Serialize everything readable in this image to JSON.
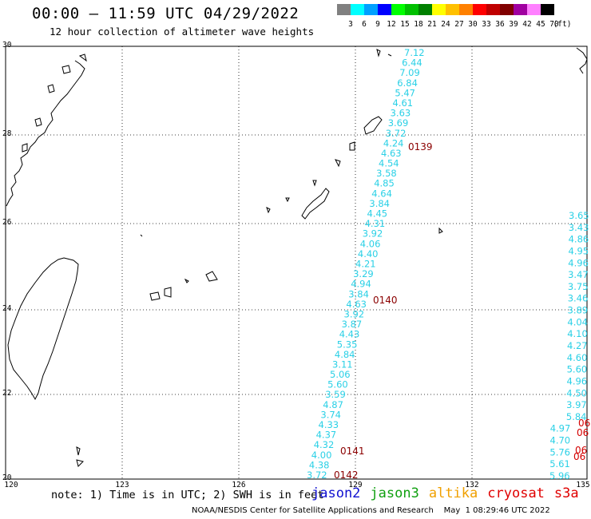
{
  "header": {
    "title": "00:00 – 11:59 UTC 04/29/2022",
    "subtitle": "12 hour collection of altimeter wave heights"
  },
  "legend": {
    "unit": "(ft)",
    "bins": [
      {
        "label": "3",
        "color": "#808080"
      },
      {
        "label": "6",
        "color": "#00ffff"
      },
      {
        "label": "9",
        "color": "#00a0ff"
      },
      {
        "label": "12",
        "color": "#0000ff"
      },
      {
        "label": "15",
        "color": "#00ff00"
      },
      {
        "label": "18",
        "color": "#00c000"
      },
      {
        "label": "21",
        "color": "#008000"
      },
      {
        "label": "24",
        "color": "#ffff00"
      },
      {
        "label": "27",
        "color": "#ffc000"
      },
      {
        "label": "30",
        "color": "#ff8000"
      },
      {
        "label": "33",
        "color": "#ff0000"
      },
      {
        "label": "36",
        "color": "#c00000"
      },
      {
        "label": "39",
        "color": "#800000"
      },
      {
        "label": "42",
        "color": "#a000a0"
      },
      {
        "label": "45",
        "color": "#ff80ff"
      },
      {
        "label": "70",
        "color": "#000000"
      }
    ]
  },
  "axes": {
    "lat_labels": [
      "30",
      "28",
      "26",
      "24",
      "22",
      "20"
    ],
    "lon_labels": [
      "120",
      "123",
      "126",
      "129",
      "132",
      "135"
    ]
  },
  "map_data": {
    "track_main": [
      "7.12",
      "6.44",
      "7.09",
      "6.84",
      "5.47",
      "4.61",
      "3.63",
      "3.69",
      "3.72",
      "4.24",
      "4.63",
      "4.54",
      "3.58",
      "4.85",
      "4.64",
      "3.84",
      "4.45",
      "4.31",
      "3.92",
      "4.06",
      "4.40",
      "4.21",
      "3.29",
      "4.94",
      "3.84",
      "4.63",
      "3.92",
      "3.87",
      "4.43",
      "5.35",
      "4.84",
      "3.11",
      "5.06",
      "5.60",
      "3.59",
      "4.87",
      "3.74",
      "4.33",
      "4.37",
      "4.32",
      "4.00",
      "4.38",
      "3.72"
    ],
    "pass_labels": [
      "0139",
      "0140",
      "0141",
      "0142"
    ],
    "track_east": [
      "3.65",
      "3.43",
      "4.86",
      "4.95",
      "4.96",
      "3.47",
      "3.75",
      "3.46",
      "3.89",
      "4.04",
      "4.10",
      "4.27",
      "4.60",
      "5.60",
      "4.96",
      "4.50",
      "3.97",
      "5.84",
      "4.97",
      "4.70",
      "5.76",
      "5.61",
      "5.96"
    ],
    "cryosat_labels": [
      "06",
      "06",
      "06",
      "06"
    ]
  },
  "footer": {
    "note": "note: 1) Time is in UTC; 2) SWH is in feet",
    "satellites": [
      {
        "name": "jason2",
        "color": "#1010d0"
      },
      {
        "name": "jason3",
        "color": "#10a010"
      },
      {
        "name": "altika",
        "color": "#f0a000"
      },
      {
        "name": "cryosat",
        "color": "#e00000"
      },
      {
        "name": "s3a",
        "color": "#e00000"
      }
    ],
    "credit": "NOAA/NESDIS Center for Satellite Applications and Research    May  1 08:29:46 UTC 2022"
  }
}
